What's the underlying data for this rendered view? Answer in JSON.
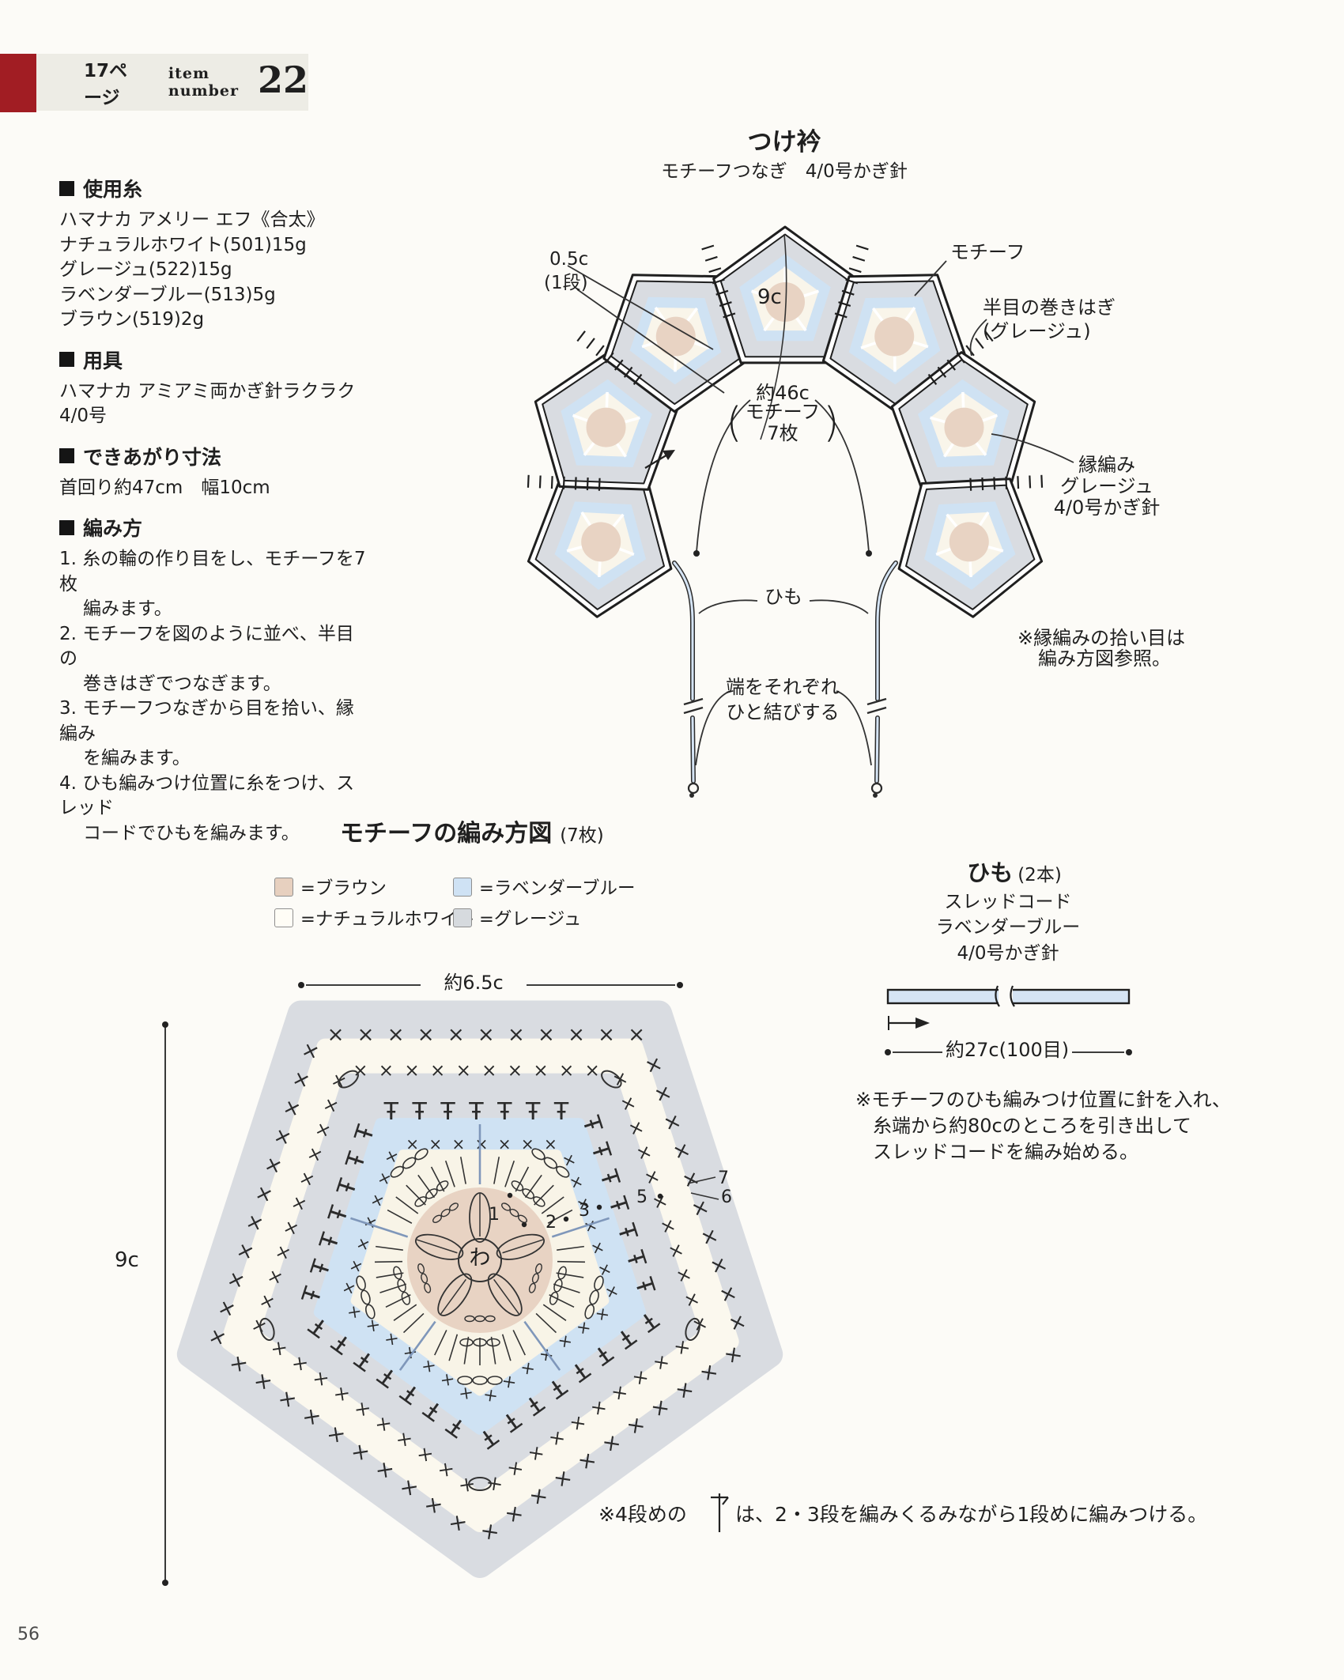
{
  "colors": {
    "paper": "#fcfbf7",
    "ink": "#1f1f1f",
    "red_block": "#a11d23",
    "header_bg": "#edece5",
    "greige": "#d9dce1",
    "lavender": "#cfe2f3",
    "cream": "#f9f5ea",
    "cream2": "#fbf8ee",
    "brown_pink": "#e8d3c3",
    "cord_fill": "#d5e4f4",
    "blue_line": "#7f97ba"
  },
  "header": {
    "page_ref": "17ページ",
    "item_label": "item number",
    "item_number": "22"
  },
  "info": {
    "yarn_heading": "使用糸",
    "yarn_lines": [
      "ハマナカ アメリー エフ《合太》",
      "ナチュラルホワイト(501)15g",
      "グレージュ(522)15g",
      "ラベンダーブルー(513)5g",
      "ブラウン(519)2g"
    ],
    "tools_heading": "用具",
    "tools_lines": [
      "ハマナカ アミアミ両かぎ針ラクラク",
      "4/0号"
    ],
    "size_heading": "できあがり寸法",
    "size_line": "首回り約47cm　幅10cm",
    "howto_heading": "編み方",
    "howto_lines": [
      "1. 糸の輪の作り目をし、モチーフを7枚",
      "編みます。",
      "2. モチーフを図のように並べ、半目の",
      "巻きはぎでつなぎます。",
      "3. モチーフつなぎから目を拾い、縁編み",
      "を編みます。",
      "4. ひも編みつけ位置に糸をつけ、スレッド",
      "コードでひもを編みます。"
    ]
  },
  "collar": {
    "title": "つけ衿",
    "subtitle": "モチーフつなぎ　4/0号かぎ針",
    "edge_width": "0.5c",
    "edge_width_sub": "(1段)",
    "motif_label": "モチーフ",
    "join_label": "半目の巻きはぎ",
    "join_sub": "(グレージュ)",
    "size_label": "9c",
    "neck_label": "約46c",
    "neck_paren_l": "(",
    "neck_sub1": "モチーフ",
    "neck_sub2": "7枚",
    "neck_paren_r": ")",
    "edging_l1": "縁編み",
    "edging_l2": "グレージュ",
    "edging_l3": "4/0号かぎ針",
    "cord_label": "ひも",
    "knot_l1": "端をそれぞれ",
    "knot_l2": "ひと結びする",
    "note_l1": "※縁編みの拾い目は",
    "note_l2": "編み方図参照。"
  },
  "motif_chart": {
    "title": "モチーフの編み方図",
    "title_sub": "(7枚)",
    "legend": [
      {
        "color": "#e7d0bf",
        "label": "=ブラウン"
      },
      {
        "color": "#fffdf6",
        "label": "=ナチュラルホワイト"
      },
      {
        "color": "#cfe2f4",
        "label": "=ラベンダーブルー"
      },
      {
        "color": "#d6dade",
        "label": "=グレージュ"
      }
    ],
    "width_label": "約6.5c",
    "height_label": "9c",
    "center_label": "わ",
    "round_numbers": [
      "1",
      "2",
      "3",
      "5",
      "6",
      "7"
    ],
    "note_pre": "※4段めの",
    "note_post": "は、2・3段を編みくるみながら1段めに編みつける。"
  },
  "cord": {
    "title": "ひも",
    "title_sub": "(2本)",
    "line1": "スレッドコード",
    "line2": "ラベンダーブルー",
    "line3": "4/0号かぎ針",
    "length_label": "約27c(100目)",
    "note1": "※モチーフのひも編みつけ位置に針を入れ、",
    "note2": "糸端から約80cのところを引き出して",
    "note3": "スレッドコードを編み始める。"
  },
  "page_number": "56"
}
